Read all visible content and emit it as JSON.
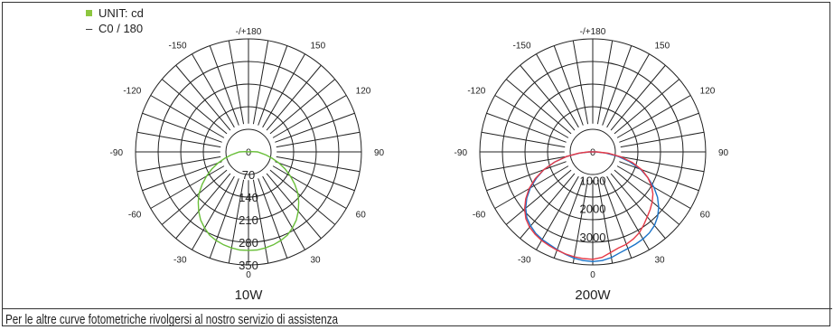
{
  "legend": {
    "unit_label": "UNIT: cd",
    "series_label": "C0 / 180",
    "series_dash": "–",
    "unit_color": "#8dc63f"
  },
  "footnote": "Per le altre curve fotometriche rivolgersi al nostro servizio di assistenza",
  "chart_data": [
    {
      "type": "polar",
      "title": "10W",
      "angle_labels": [
        {
          "angle": 180,
          "label": "-/+180"
        },
        {
          "angle": 150,
          "label": "150"
        },
        {
          "angle": -150,
          "label": "-150"
        },
        {
          "angle": 120,
          "label": "120"
        },
        {
          "angle": -120,
          "label": "-120"
        },
        {
          "angle": 90,
          "label": "90"
        },
        {
          "angle": -90,
          "label": "-90"
        },
        {
          "angle": 60,
          "label": "60"
        },
        {
          "angle": -60,
          "label": "-60"
        },
        {
          "angle": 30,
          "label": "30"
        },
        {
          "angle": -30,
          "label": "-30"
        },
        {
          "angle": 0,
          "label": "0"
        }
      ],
      "center_label": "0",
      "radial_ticks": [
        "70",
        "140",
        "210",
        "280",
        "350"
      ],
      "rmax": 350,
      "series": [
        {
          "color": "#6abf3a",
          "points": [
            [
              0,
              305
            ],
            [
              5,
              305
            ],
            [
              10,
              302
            ],
            [
              15,
              298
            ],
            [
              20,
              292
            ],
            [
              25,
              285
            ],
            [
              30,
              272
            ],
            [
              35,
              258
            ],
            [
              40,
              240
            ],
            [
              45,
              220
            ],
            [
              50,
              200
            ],
            [
              55,
              175
            ],
            [
              60,
              150
            ],
            [
              65,
              125
            ],
            [
              70,
              100
            ],
            [
              75,
              75
            ],
            [
              80,
              55
            ],
            [
              85,
              38
            ],
            [
              90,
              28
            ],
            [
              95,
              10
            ],
            [
              180,
              0
            ],
            [
              265,
              10
            ],
            [
              270,
              28
            ],
            [
              275,
              38
            ],
            [
              280,
              55
            ],
            [
              285,
              75
            ],
            [
              290,
              100
            ],
            [
              295,
              125
            ],
            [
              300,
              150
            ],
            [
              305,
              175
            ],
            [
              310,
              200
            ],
            [
              315,
              220
            ],
            [
              320,
              240
            ],
            [
              325,
              258
            ],
            [
              330,
              272
            ],
            [
              335,
              285
            ],
            [
              340,
              292
            ],
            [
              345,
              298
            ],
            [
              350,
              302
            ],
            [
              355,
              305
            ]
          ]
        }
      ]
    },
    {
      "type": "polar",
      "title": "200W",
      "angle_labels": [
        {
          "angle": 180,
          "label": "-/+180"
        },
        {
          "angle": 150,
          "label": "150"
        },
        {
          "angle": -150,
          "label": "-150"
        },
        {
          "angle": 120,
          "label": "120"
        },
        {
          "angle": -120,
          "label": "-120"
        },
        {
          "angle": 90,
          "label": "90"
        },
        {
          "angle": -90,
          "label": "-90"
        },
        {
          "angle": 60,
          "label": "60"
        },
        {
          "angle": -60,
          "label": "-60"
        },
        {
          "angle": 30,
          "label": "30"
        },
        {
          "angle": -30,
          "label": "-30"
        },
        {
          "angle": 0,
          "label": "0"
        }
      ],
      "center_label": "0",
      "radial_ticks": [
        "1000",
        "2000",
        "3000"
      ],
      "rmax": 4000,
      "series": [
        {
          "color": "#1a73c8",
          "points": [
            [
              0,
              3880
            ],
            [
              5,
              3860
            ],
            [
              10,
              3800
            ],
            [
              15,
              3700
            ],
            [
              20,
              3640
            ],
            [
              25,
              3600
            ],
            [
              30,
              3560
            ],
            [
              35,
              3500
            ],
            [
              40,
              3400
            ],
            [
              45,
              3250
            ],
            [
              50,
              3050
            ],
            [
              55,
              2800
            ],
            [
              60,
              2500
            ],
            [
              65,
              2150
            ],
            [
              70,
              1800
            ],
            [
              75,
              1350
            ],
            [
              80,
              900
            ],
            [
              85,
              450
            ],
            [
              90,
              100
            ],
            [
              180,
              0
            ],
            [
              270,
              100
            ],
            [
              275,
              450
            ],
            [
              280,
              950
            ],
            [
              285,
              1400
            ],
            [
              290,
              1850
            ],
            [
              295,
              2200
            ],
            [
              300,
              2550
            ],
            [
              305,
              2850
            ],
            [
              310,
              3100
            ],
            [
              315,
              3300
            ],
            [
              320,
              3420
            ],
            [
              325,
              3520
            ],
            [
              330,
              3580
            ],
            [
              335,
              3620
            ],
            [
              340,
              3680
            ],
            [
              345,
              3750
            ],
            [
              350,
              3820
            ],
            [
              355,
              3860
            ]
          ]
        },
        {
          "color": "#e63946",
          "points": [
            [
              0,
              3800
            ],
            [
              5,
              3750
            ],
            [
              10,
              3620
            ],
            [
              15,
              3520
            ],
            [
              20,
              3480
            ],
            [
              25,
              3400
            ],
            [
              30,
              3300
            ],
            [
              35,
              3150
            ],
            [
              40,
              3000
            ],
            [
              45,
              2880
            ],
            [
              50,
              2750
            ],
            [
              55,
              2600
            ],
            [
              60,
              2400
            ],
            [
              65,
              2150
            ],
            [
              70,
              1850
            ],
            [
              75,
              1450
            ],
            [
              80,
              1000
            ],
            [
              85,
              550
            ],
            [
              90,
              150
            ],
            [
              180,
              0
            ],
            [
              270,
              150
            ],
            [
              275,
              500
            ],
            [
              280,
              950
            ],
            [
              285,
              1400
            ],
            [
              290,
              1850
            ],
            [
              295,
              2250
            ],
            [
              300,
              2600
            ],
            [
              305,
              2900
            ],
            [
              310,
              3150
            ],
            [
              315,
              3350
            ],
            [
              320,
              3480
            ],
            [
              325,
              3560
            ],
            [
              330,
              3620
            ],
            [
              335,
              3660
            ],
            [
              340,
              3700
            ],
            [
              345,
              3740
            ],
            [
              350,
              3770
            ],
            [
              355,
              3790
            ]
          ]
        }
      ]
    }
  ]
}
